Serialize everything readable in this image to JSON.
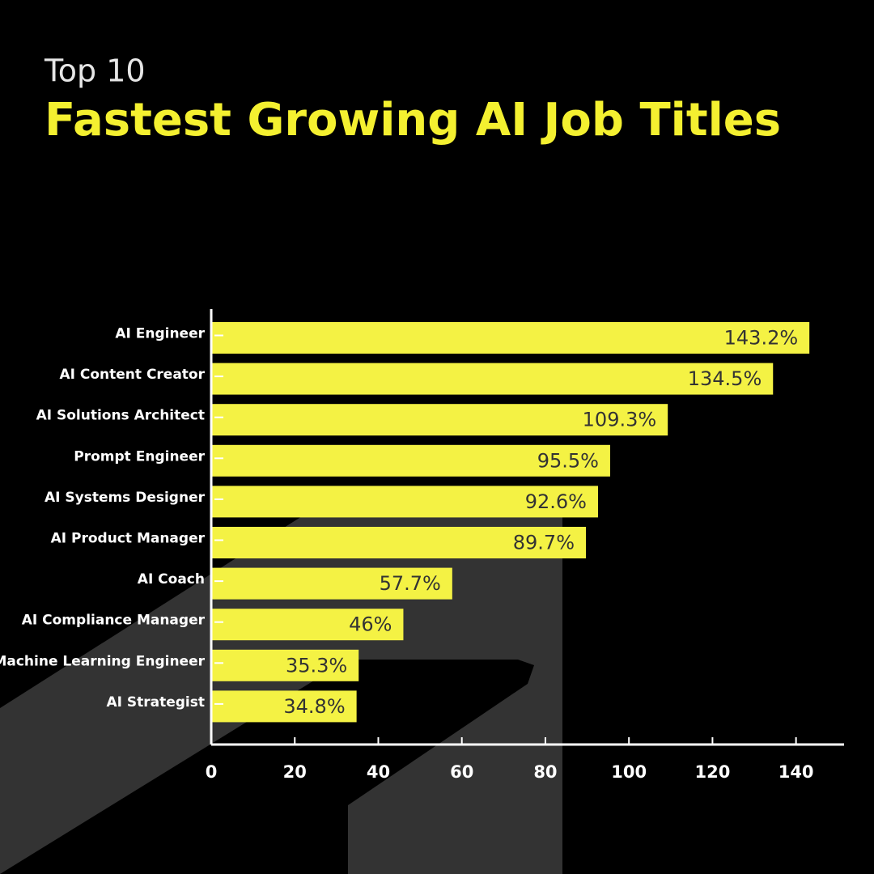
{
  "chart_data": {
    "type": "bar",
    "orientation": "horizontal",
    "supertitle": "Top 10",
    "title": "Fastest Growing AI Job Titles",
    "categories": [
      "AI Engineer",
      "AI Content Creator",
      "AI Solutions Architect",
      "Prompt Engineer",
      "AI Systems Designer",
      "AI Product Manager",
      "AI Coach",
      "AI Compliance Manager",
      "Machine Learning Engineer",
      "AI Strategist"
    ],
    "values": [
      143.2,
      134.5,
      109.3,
      95.5,
      92.6,
      89.7,
      57.7,
      46,
      35.3,
      34.8
    ],
    "value_labels": [
      "143.2%",
      "134.5%",
      "109.3%",
      "95.5%",
      "92.6%",
      "89.7%",
      "57.7%",
      "46%",
      "35.3%",
      "34.8%"
    ],
    "color": "#f4f244",
    "xlim": [
      0,
      151.5
    ],
    "xticks": [
      0,
      20,
      40,
      60,
      80,
      100,
      120,
      140
    ]
  }
}
